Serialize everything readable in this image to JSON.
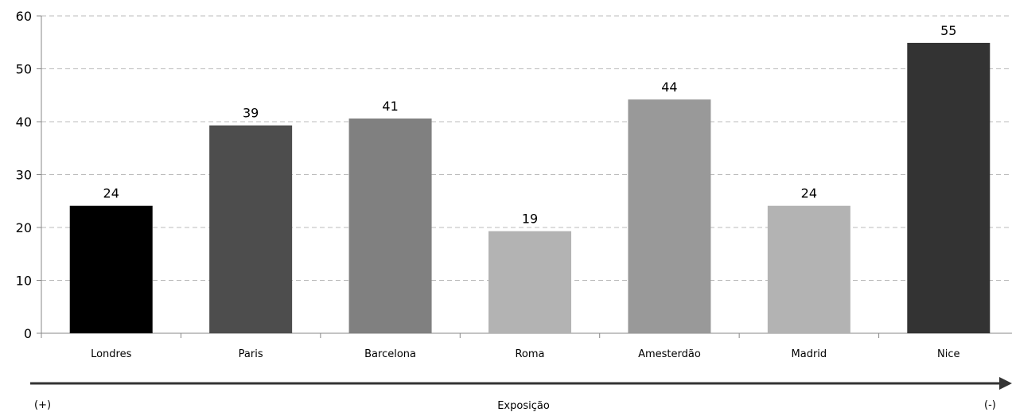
{
  "chart_data": {
    "type": "bar",
    "categories": [
      "Londres",
      "Paris",
      "Barcelona",
      "Roma",
      "Amesterdão",
      "Madrid",
      "Nice"
    ],
    "values": [
      24,
      39,
      41,
      19,
      44,
      24,
      55
    ],
    "bar_values": [
      24.1,
      39.3,
      40.6,
      19.3,
      44.2,
      24.1,
      54.9
    ],
    "colors": [
      "#000000",
      "#4d4d4d",
      "#808080",
      "#b3b3b3",
      "#999999",
      "#b3b3b3",
      "#333333"
    ],
    "ylim": [
      0,
      60
    ],
    "yticks": [
      "0",
      "10",
      "20",
      "30",
      "40",
      "50",
      "60"
    ],
    "grid": true,
    "legend": "none"
  },
  "footer": {
    "left_label": "(+)",
    "center_label": "Exposição",
    "right_label": "(-)"
  }
}
